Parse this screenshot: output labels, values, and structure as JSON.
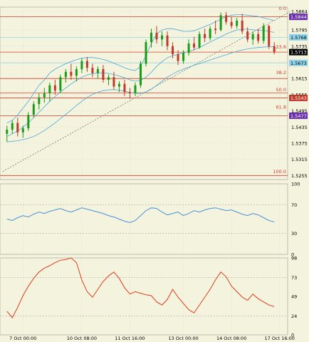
{
  "chart_data": [
    {
      "type": "candlestick",
      "title": "",
      "instrument_levels": {
        "y_ticks": [
          "1.5864",
          "1.5795",
          "1.5735",
          "1.5675",
          "1.5615",
          "1.5555",
          "1.5495",
          "1.5435",
          "1.5375",
          "1.5315",
          "1.5255"
        ],
        "y_tick_values": [
          1.5864,
          1.5795,
          1.5735,
          1.5675,
          1.5615,
          1.5555,
          1.5495,
          1.5435,
          1.5375,
          1.5315,
          1.5255
        ],
        "ylim": [
          1.524,
          1.588
        ],
        "price_tags": [
          {
            "label": "1.5844",
            "value": 1.5844,
            "color": "#6b2fa8",
            "text_color": "#ffffff"
          },
          {
            "label": "1.5768",
            "value": 1.5768,
            "color": "#8fd3e8",
            "text_color": "#000000"
          },
          {
            "label": "1.5713",
            "value": 1.5713,
            "color": "#000000",
            "text_color": "#ffffff"
          },
          {
            "label": "1.5673",
            "value": 1.5673,
            "color": "#8fd3e8",
            "text_color": "#000000"
          },
          {
            "label": "1.5543",
            "value": 1.5543,
            "color": "#c0392b",
            "text_color": "#ffffff"
          },
          {
            "label": "1.5477",
            "value": 1.5477,
            "color": "#6b2fa8",
            "text_color": "#ffffff"
          }
        ]
      },
      "fib_levels": [
        {
          "label": "0.0",
          "value": 1.5864
        },
        {
          "label": "23.6",
          "value": 1.5721
        },
        {
          "label": "38.2",
          "value": 1.5626
        },
        {
          "label": "50.0",
          "value": 1.5562
        },
        {
          "label": "61.8",
          "value": 1.5498
        },
        {
          "label": "100.0",
          "value": 1.5258
        }
      ],
      "horizontal_lines": [
        {
          "value": 1.5844,
          "color": "#d23a2a"
        },
        {
          "value": 1.5768,
          "color": "#8fd3e8"
        },
        {
          "value": 1.5713,
          "color": "#d23a2a"
        },
        {
          "value": 1.5673,
          "color": "#8fd3e8"
        },
        {
          "value": 1.5615,
          "color": "#d23a2a"
        },
        {
          "value": 1.5562,
          "color": "#d23a2a"
        },
        {
          "value": 1.5543,
          "color": "#d23a2a"
        },
        {
          "value": 1.5477,
          "color": "#d23a2a"
        },
        {
          "value": 1.5255,
          "color": "#d23a2a"
        }
      ],
      "candles": [
        [
          1.541,
          1.544,
          1.538,
          1.5425
        ],
        [
          1.5425,
          1.546,
          1.541,
          1.545
        ],
        [
          1.545,
          1.547,
          1.54,
          1.5415
        ],
        [
          1.5415,
          1.544,
          1.5395,
          1.543
        ],
        [
          1.543,
          1.549,
          1.542,
          1.548
        ],
        [
          1.548,
          1.553,
          1.547,
          1.552
        ],
        [
          1.552,
          1.556,
          1.55,
          1.5545
        ],
        [
          1.5545,
          1.558,
          1.5525,
          1.556
        ],
        [
          1.556,
          1.56,
          1.553,
          1.559
        ],
        [
          1.559,
          1.561,
          1.5555,
          1.557
        ],
        [
          1.557,
          1.563,
          1.556,
          1.562
        ],
        [
          1.562,
          1.565,
          1.56,
          1.564
        ],
        [
          1.564,
          1.567,
          1.561,
          1.5625
        ],
        [
          1.5625,
          1.566,
          1.5605,
          1.565
        ],
        [
          1.565,
          1.569,
          1.5635,
          1.568
        ],
        [
          1.568,
          1.5695,
          1.564,
          1.5655
        ],
        [
          1.5655,
          1.567,
          1.562,
          1.5635
        ],
        [
          1.5635,
          1.566,
          1.5615,
          1.565
        ],
        [
          1.565,
          1.5665,
          1.56,
          1.561
        ],
        [
          1.561,
          1.563,
          1.559,
          1.562
        ],
        [
          1.562,
          1.564,
          1.5575,
          1.5585
        ],
        [
          1.5585,
          1.5605,
          1.5565,
          1.5595
        ],
        [
          1.5595,
          1.561,
          1.555,
          1.5565
        ],
        [
          1.5565,
          1.558,
          1.554,
          1.556
        ],
        [
          1.556,
          1.56,
          1.555,
          1.559
        ],
        [
          1.559,
          1.568,
          1.558,
          1.567
        ],
        [
          1.567,
          1.576,
          1.566,
          1.575
        ],
        [
          1.575,
          1.58,
          1.573,
          1.5785
        ],
        [
          1.5785,
          1.581,
          1.5745,
          1.576
        ],
        [
          1.576,
          1.579,
          1.5735,
          1.5775
        ],
        [
          1.5775,
          1.579,
          1.572,
          1.5735
        ],
        [
          1.5735,
          1.575,
          1.569,
          1.5705
        ],
        [
          1.5705,
          1.572,
          1.5665,
          1.568
        ],
        [
          1.568,
          1.572,
          1.567,
          1.571
        ],
        [
          1.571,
          1.576,
          1.57,
          1.5745
        ],
        [
          1.5745,
          1.577,
          1.572,
          1.573
        ],
        [
          1.573,
          1.579,
          1.5725,
          1.578
        ],
        [
          1.578,
          1.58,
          1.575,
          1.5765
        ],
        [
          1.5765,
          1.581,
          1.5755,
          1.58
        ],
        [
          1.58,
          1.583,
          1.578,
          1.5795
        ],
        [
          1.5795,
          1.586,
          1.579,
          1.585
        ],
        [
          1.585,
          1.5862,
          1.5815,
          1.5825
        ],
        [
          1.5825,
          1.5845,
          1.58,
          1.581
        ],
        [
          1.581,
          1.584,
          1.58,
          1.583
        ],
        [
          1.583,
          1.5855,
          1.578,
          1.579
        ],
        [
          1.579,
          1.5805,
          1.575,
          1.576
        ],
        [
          1.576,
          1.579,
          1.574,
          1.578
        ],
        [
          1.578,
          1.58,
          1.5745,
          1.5755
        ],
        [
          1.5755,
          1.582,
          1.5745,
          1.581
        ],
        [
          1.581,
          1.5815,
          1.5725,
          1.5735
        ],
        [
          1.5735,
          1.575,
          1.5705,
          1.5713
        ]
      ],
      "bollinger": {
        "upper": [
          1.545,
          1.546,
          1.548,
          1.5505,
          1.553,
          1.556,
          1.559,
          1.561,
          1.5635,
          1.565,
          1.566,
          1.567,
          1.5678,
          1.5685,
          1.569,
          1.5693,
          1.5693,
          1.569,
          1.5686,
          1.568,
          1.5672,
          1.5664,
          1.5655,
          1.5648,
          1.5645,
          1.566,
          1.57,
          1.5745,
          1.578,
          1.5795,
          1.58,
          1.58,
          1.5795,
          1.579,
          1.579,
          1.5792,
          1.58,
          1.5808,
          1.5816,
          1.5825,
          1.5835,
          1.5845,
          1.585,
          1.5852,
          1.5852,
          1.585,
          1.5848,
          1.5845,
          1.584,
          1.5835,
          1.583
        ],
        "middle": [
          1.54,
          1.541,
          1.542,
          1.5435,
          1.545,
          1.547,
          1.549,
          1.551,
          1.553,
          1.5548,
          1.5565,
          1.558,
          1.5595,
          1.5608,
          1.562,
          1.5628,
          1.5633,
          1.5636,
          1.5636,
          1.5634,
          1.563,
          1.5624,
          1.5618,
          1.561,
          1.5605,
          1.5608,
          1.562,
          1.5638,
          1.566,
          1.5678,
          1.5692,
          1.57,
          1.5705,
          1.571,
          1.5715,
          1.5722,
          1.573,
          1.574,
          1.575,
          1.576,
          1.577,
          1.578,
          1.5788,
          1.5795,
          1.5798,
          1.5798,
          1.5796,
          1.5794,
          1.5793,
          1.579,
          1.5786
        ],
        "lower": [
          1.538,
          1.5382,
          1.5384,
          1.5388,
          1.5393,
          1.54,
          1.541,
          1.5422,
          1.5436,
          1.545,
          1.5466,
          1.5482,
          1.5498,
          1.5515,
          1.553,
          1.5545,
          1.5556,
          1.5564,
          1.557,
          1.5573,
          1.5574,
          1.5572,
          1.5568,
          1.5563,
          1.556,
          1.556,
          1.5565,
          1.5575,
          1.559,
          1.5605,
          1.562,
          1.5632,
          1.5642,
          1.565,
          1.5657,
          1.5664,
          1.567,
          1.5677,
          1.5684,
          1.569,
          1.5697,
          1.5703,
          1.571,
          1.5716,
          1.5721,
          1.5725,
          1.5728,
          1.573,
          1.5732,
          1.5733,
          1.5734
        ]
      },
      "trendline": {
        "from": [
          0,
          1.527
        ],
        "to": [
          53,
          1.5864
        ]
      }
    },
    {
      "type": "line",
      "title": "",
      "y_ticks": [
        "100",
        "70",
        "30",
        "0"
      ],
      "ylim": [
        0,
        100
      ],
      "levels": [
        30,
        70
      ],
      "series": [
        {
          "color": "#4a90d9",
          "values": [
            50,
            48,
            52,
            55,
            53,
            57,
            60,
            58,
            61,
            63,
            65,
            62,
            60,
            63,
            66,
            64,
            62,
            60,
            58,
            55,
            53,
            50,
            47,
            45,
            48,
            55,
            62,
            66,
            65,
            60,
            56,
            58,
            60,
            55,
            58,
            62,
            60,
            63,
            65,
            66,
            64,
            62,
            63,
            60,
            57,
            55,
            58,
            56,
            52,
            48,
            46
          ]
        }
      ]
    },
    {
      "type": "line",
      "title": "",
      "y_ticks": [
        "98",
        "73",
        "49",
        "24",
        "0"
      ],
      "ylim": [
        0,
        98
      ],
      "levels": [
        24,
        73
      ],
      "series": [
        {
          "color": "#e03c1e",
          "values": [
            30,
            22,
            35,
            50,
            62,
            72,
            80,
            85,
            88,
            92,
            95,
            96,
            98,
            92,
            70,
            55,
            48,
            58,
            68,
            75,
            80,
            72,
            60,
            52,
            55,
            53,
            51,
            50,
            42,
            38,
            45,
            58,
            48,
            40,
            32,
            28,
            38,
            48,
            58,
            70,
            80,
            74,
            62,
            55,
            48,
            44,
            52,
            46,
            42,
            38,
            36
          ]
        }
      ]
    }
  ],
  "x_axis": {
    "labels": [
      "7 Oct 00:00",
      "10 Oct 08:00",
      "11 Oct 16:00",
      "13 Oct 00:00",
      "14 Oct 08:00",
      "17 Oct 16:00"
    ],
    "label_bar_index": [
      3,
      14,
      23,
      33,
      42,
      51
    ]
  },
  "colors": {
    "background": "#f4f4de",
    "grid": "#cfcfcf",
    "bull": "#1a9c1a",
    "bear": "#c0392b",
    "band": "#4aa8d8",
    "fib": "#d23a2a",
    "trendline": "#666666"
  }
}
